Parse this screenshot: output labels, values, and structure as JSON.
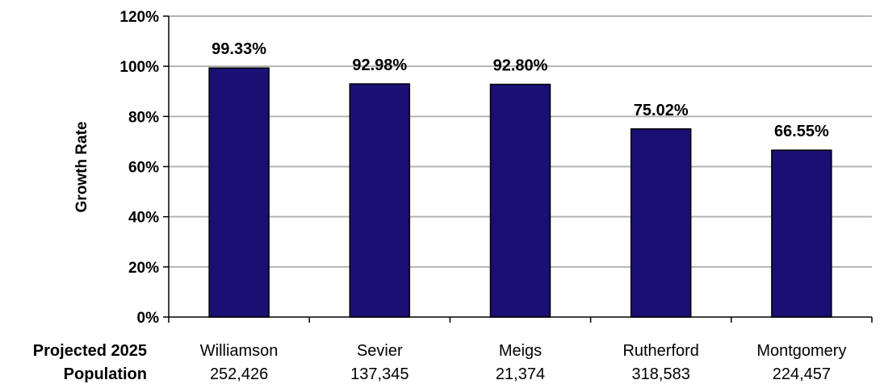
{
  "chart_data": {
    "type": "bar",
    "categories": [
      "Williamson",
      "Sevier",
      "Meigs",
      "Rutherford",
      "Montgomery"
    ],
    "values": [
      99.33,
      92.98,
      92.8,
      75.02,
      66.55
    ],
    "value_labels": [
      "99.33%",
      "92.98%",
      "92.80%",
      "75.02%",
      "66.55%"
    ],
    "populations": [
      "252,426",
      "137,345",
      "21,374",
      "318,583",
      "224,457"
    ],
    "ylabel": "Growth Rate",
    "row_header_line1": "Projected 2025",
    "row_header_line2": "Population",
    "ylim": [
      0,
      120
    ],
    "yticks": [
      0,
      20,
      40,
      60,
      80,
      100,
      120
    ],
    "ytick_labels": [
      "0%",
      "20%",
      "40%",
      "60%",
      "80%",
      "100%",
      "120%"
    ],
    "grid": true,
    "bar_color": "#1a0f73",
    "grid_color": "#b3b3b3"
  }
}
